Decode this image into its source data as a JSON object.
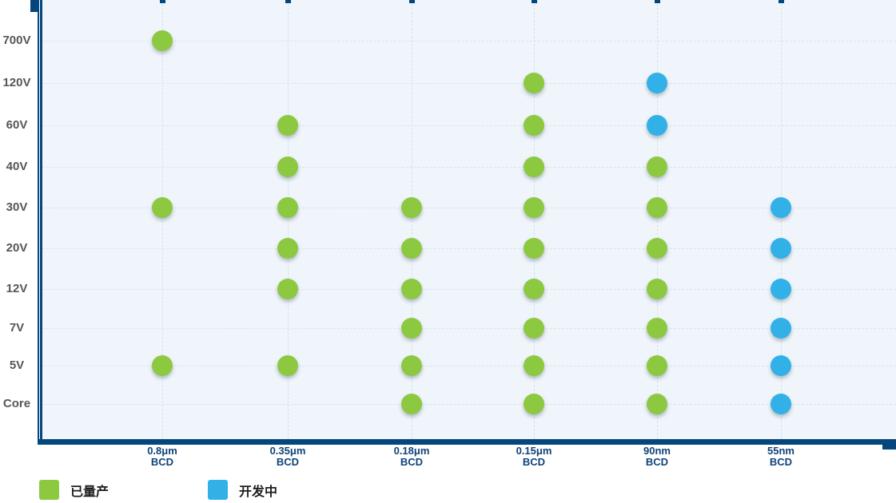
{
  "chart_data": {
    "type": "scatter",
    "title": "",
    "x_categories": [
      "0.8μm BCD",
      "0.35μm BCD",
      "0.18μm BCD",
      "0.15μm BCD",
      "90nm BCD",
      "55nm BCD"
    ],
    "x_tick_lines": [
      [
        "0.8μm",
        "BCD"
      ],
      [
        "0.35μm",
        "BCD"
      ],
      [
        "0.18μm",
        "BCD"
      ],
      [
        "0.15μm",
        "BCD"
      ],
      [
        "90nm",
        "BCD"
      ],
      [
        "55nm",
        "BCD"
      ]
    ],
    "y_categories_top_down": [
      "700V",
      "120V",
      "60V",
      "40V",
      "30V",
      "20V",
      "12V",
      "7V",
      "5V",
      "Core"
    ],
    "series": [
      {
        "name": "已量产",
        "color": "#8dc841",
        "points": [
          [
            "0.8μm BCD",
            "700V"
          ],
          [
            "0.8μm BCD",
            "30V"
          ],
          [
            "0.8μm BCD",
            "5V"
          ],
          [
            "0.35μm BCD",
            "60V"
          ],
          [
            "0.35μm BCD",
            "40V"
          ],
          [
            "0.35μm BCD",
            "30V"
          ],
          [
            "0.35μm BCD",
            "20V"
          ],
          [
            "0.35μm BCD",
            "12V"
          ],
          [
            "0.35μm BCD",
            "5V"
          ],
          [
            "0.18μm BCD",
            "30V"
          ],
          [
            "0.18μm BCD",
            "20V"
          ],
          [
            "0.18μm BCD",
            "12V"
          ],
          [
            "0.18μm BCD",
            "7V"
          ],
          [
            "0.18μm BCD",
            "5V"
          ],
          [
            "0.18μm BCD",
            "Core"
          ],
          [
            "0.15μm BCD",
            "120V"
          ],
          [
            "0.15μm BCD",
            "60V"
          ],
          [
            "0.15μm BCD",
            "40V"
          ],
          [
            "0.15μm BCD",
            "30V"
          ],
          [
            "0.15μm BCD",
            "20V"
          ],
          [
            "0.15μm BCD",
            "12V"
          ],
          [
            "0.15μm BCD",
            "7V"
          ],
          [
            "0.15μm BCD",
            "5V"
          ],
          [
            "0.15μm BCD",
            "Core"
          ],
          [
            "90nm BCD",
            "40V"
          ],
          [
            "90nm BCD",
            "30V"
          ],
          [
            "90nm BCD",
            "20V"
          ],
          [
            "90nm BCD",
            "12V"
          ],
          [
            "90nm BCD",
            "7V"
          ],
          [
            "90nm BCD",
            "5V"
          ],
          [
            "90nm BCD",
            "Core"
          ]
        ]
      },
      {
        "name": "开发中",
        "color": "#31b1e8",
        "points": [
          [
            "90nm BCD",
            "120V"
          ],
          [
            "90nm BCD",
            "60V"
          ],
          [
            "55nm BCD",
            "30V"
          ],
          [
            "55nm BCD",
            "20V"
          ],
          [
            "55nm BCD",
            "12V"
          ],
          [
            "55nm BCD",
            "7V"
          ],
          [
            "55nm BCD",
            "5V"
          ],
          [
            "55nm BCD",
            "Core"
          ]
        ]
      }
    ],
    "legend": {
      "position": "bottom-left",
      "items": [
        {
          "label": "已量产",
          "color": "#8dc841"
        },
        {
          "label": "开发中",
          "color": "#31b1e8"
        }
      ]
    },
    "grid": true,
    "axis_color": "#05477d",
    "plot_bg": "#eff5fa"
  }
}
